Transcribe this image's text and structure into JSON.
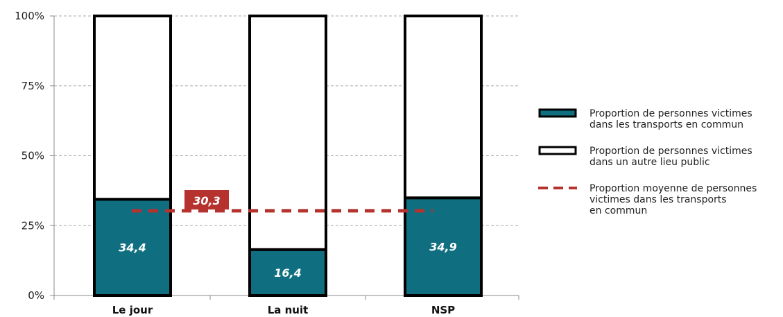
{
  "chart_data": {
    "type": "bar",
    "stacked": true,
    "categories": [
      "Le jour",
      "La nuit",
      "NSP"
    ],
    "series": [
      {
        "name": "Proportion de personnes victimes dans les transports en commun",
        "values": [
          34.4,
          16.4,
          34.9
        ],
        "data_labels": [
          "34,4",
          "16,4",
          "34,9"
        ],
        "color": "#0f6f80"
      },
      {
        "name": "Proportion de personnes victimes dans un autre lieu public",
        "values": [
          65.6,
          83.6,
          65.1
        ],
        "color": "#ffffff"
      }
    ],
    "reference_line": {
      "name": "Proportion moyenne de personnes victimes dans les transports en commun",
      "value": 30.3,
      "label": "30,3",
      "color": "#b5322e"
    },
    "ylim": [
      0,
      100
    ],
    "yticks": [
      0,
      25,
      50,
      75,
      100
    ],
    "ytick_labels": [
      "0%",
      "25%",
      "50%",
      "75%",
      "100%"
    ],
    "grid": "horizontal dashed",
    "legend_position": "right",
    "title": "",
    "xlabel": "",
    "ylabel": ""
  },
  "legend": {
    "items": [
      {
        "lines": [
          "Proportion de personnes victimes",
          "dans les transports en commun"
        ]
      },
      {
        "lines": [
          "Proportion de personnes victimes",
          "dans un autre lieu public"
        ]
      },
      {
        "lines": [
          "Proportion moyenne de personnes",
          "victimes dans les transports",
          "en commun"
        ]
      }
    ]
  },
  "colors": {
    "bar_fill": "#0f6f80",
    "bar_outline": "#000000",
    "reference": "#b5322e",
    "grid": "#aaaaaa"
  }
}
